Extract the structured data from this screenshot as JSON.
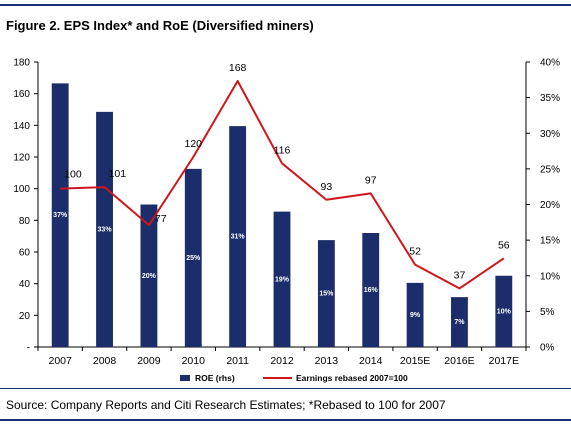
{
  "figure": {
    "title": "Figure 2. EPS Index* and RoE (Diversified miners)",
    "source": "Source: Company Reports and Citi Research Estimates; *Rebased to 100 for 2007"
  },
  "colors": {
    "bar": "#1b2d6b",
    "line": "#d0161b",
    "rule": "#1a2f7a"
  },
  "chart_data": {
    "type": "bar",
    "categories": [
      "2007",
      "2008",
      "2009",
      "2010",
      "2011",
      "2012",
      "2013",
      "2014",
      "2015E",
      "2016E",
      "2017E"
    ],
    "series": [
      {
        "name": "ROE (rhs)",
        "type": "bar",
        "axis": "right",
        "values": [
          37,
          33,
          20,
          25,
          31,
          19,
          15,
          16,
          9,
          7,
          10
        ],
        "labels": [
          "37%",
          "33%",
          "20%",
          "25%",
          "31%",
          "19%",
          "15%",
          "16%",
          "9%",
          "7%",
          "10%"
        ]
      },
      {
        "name": "Earnings rebased 2007=100",
        "type": "line",
        "axis": "left",
        "values": [
          100,
          101,
          77,
          120,
          168,
          116,
          93,
          97,
          52,
          37,
          56
        ],
        "labels": [
          "100",
          "101",
          "77",
          "120",
          "168",
          "116",
          "93",
          "97",
          "52",
          "37",
          "56"
        ]
      }
    ],
    "y_left": {
      "min": 0,
      "max": 180,
      "ticks": [
        "-",
        "20",
        "40",
        "60",
        "80",
        "100",
        "120",
        "140",
        "160",
        "180"
      ]
    },
    "y_right": {
      "min": 0,
      "max": 40,
      "ticks": [
        "0%",
        "5%",
        "10%",
        "15%",
        "20%",
        "25%",
        "30%",
        "35%",
        "40%"
      ]
    },
    "legend_position": "bottom",
    "grid": false
  }
}
